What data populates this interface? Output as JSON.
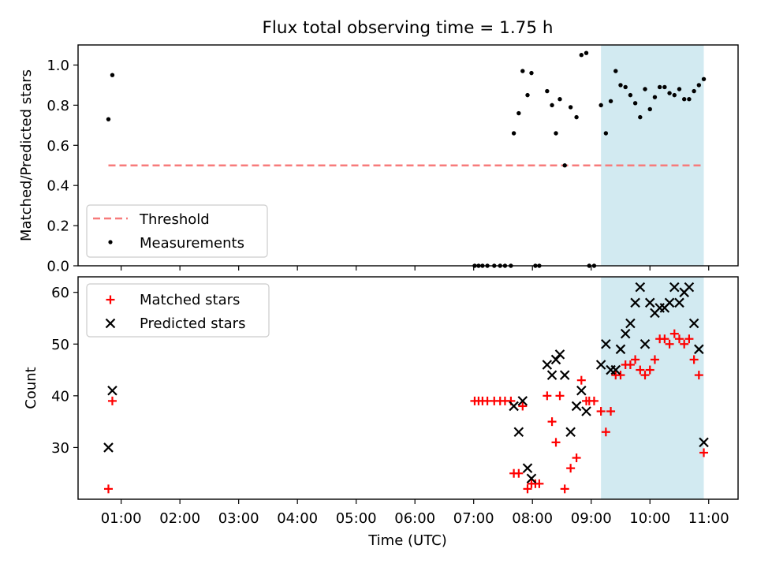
{
  "figure_title": "Flux total observing time = 1.75 h",
  "colors": {
    "threshold": "#f77b7b",
    "matched": "#ff0000",
    "predicted": "#000000",
    "measurement": "#000000",
    "highlight": "#add8e6"
  },
  "chart_data": [
    {
      "type": "scatter",
      "panel": "top",
      "ylabel": "Matched/Predicted stars",
      "ylim": [
        0,
        1.1
      ],
      "yticks": [
        0.0,
        0.2,
        0.4,
        0.6,
        0.8,
        1.0
      ],
      "ytick_labels": [
        "0.0",
        "0.2",
        "0.4",
        "0.6",
        "0.8",
        "1.0"
      ],
      "xlim": [
        "00:16",
        "11:30"
      ],
      "shaded_interval": [
        "09:10",
        "10:55"
      ],
      "legend_location": "lower-left",
      "legend": [
        {
          "label": "Threshold",
          "marker": "dashed-line"
        },
        {
          "label": "Measurements",
          "marker": "dot"
        }
      ],
      "threshold": {
        "name": "Threshold",
        "y": 0.5,
        "x_range": [
          "00:47",
          "10:53"
        ],
        "style": "dashed"
      },
      "series": [
        {
          "name": "Measurements",
          "points": [
            [
              "00:47",
              0.73
            ],
            [
              "00:51",
              0.95
            ],
            [
              "07:01",
              0.0
            ],
            [
              "07:05",
              0.0
            ],
            [
              "07:09",
              0.0
            ],
            [
              "07:14",
              0.0
            ],
            [
              "07:21",
              0.0
            ],
            [
              "07:27",
              0.0
            ],
            [
              "07:32",
              0.0
            ],
            [
              "07:38",
              0.0
            ],
            [
              "07:41",
              0.66
            ],
            [
              "07:46",
              0.76
            ],
            [
              "07:50",
              0.97
            ],
            [
              "07:55",
              0.85
            ],
            [
              "07:59",
              0.96
            ],
            [
              "08:03",
              0.0
            ],
            [
              "08:07",
              0.0
            ],
            [
              "08:15",
              0.87
            ],
            [
              "08:20",
              0.8
            ],
            [
              "08:24",
              0.66
            ],
            [
              "08:28",
              0.83
            ],
            [
              "08:33",
              0.5
            ],
            [
              "08:39",
              0.79
            ],
            [
              "08:45",
              0.74
            ],
            [
              "08:50",
              1.05
            ],
            [
              "08:55",
              1.06
            ],
            [
              "08:58",
              0.0
            ],
            [
              "09:03",
              0.0
            ],
            [
              "09:10",
              0.8
            ],
            [
              "09:15",
              0.66
            ],
            [
              "09:20",
              0.82
            ],
            [
              "09:25",
              0.97
            ],
            [
              "09:30",
              0.9
            ],
            [
              "09:35",
              0.89
            ],
            [
              "09:40",
              0.85
            ],
            [
              "09:45",
              0.81
            ],
            [
              "09:50",
              0.74
            ],
            [
              "09:55",
              0.88
            ],
            [
              "10:00",
              0.78
            ],
            [
              "10:05",
              0.84
            ],
            [
              "10:10",
              0.89
            ],
            [
              "10:15",
              0.89
            ],
            [
              "10:20",
              0.86
            ],
            [
              "10:25",
              0.85
            ],
            [
              "10:30",
              0.88
            ],
            [
              "10:35",
              0.83
            ],
            [
              "10:40",
              0.83
            ],
            [
              "10:45",
              0.87
            ],
            [
              "10:50",
              0.9
            ],
            [
              "10:55",
              0.93
            ]
          ]
        }
      ]
    },
    {
      "type": "scatter",
      "panel": "bottom",
      "xlabel": "Time (UTC)",
      "ylabel": "Count",
      "ylim": [
        20,
        63
      ],
      "yticks": [
        30,
        40,
        50,
        60
      ],
      "ytick_labels": [
        "30",
        "40",
        "50",
        "60"
      ],
      "xlim": [
        "00:16",
        "11:30"
      ],
      "xtick_labels": [
        "01:00",
        "02:00",
        "03:00",
        "04:00",
        "05:00",
        "06:00",
        "07:00",
        "08:00",
        "09:00",
        "10:00",
        "11:00"
      ],
      "shaded_interval": [
        "09:10",
        "10:55"
      ],
      "legend_location": "upper-left",
      "legend": [
        {
          "label": "Matched stars",
          "marker": "plus"
        },
        {
          "label": "Predicted stars",
          "marker": "x"
        }
      ],
      "series": [
        {
          "name": "Matched stars",
          "marker": "plus",
          "points": [
            [
              "00:47",
              22
            ],
            [
              "00:51",
              39
            ],
            [
              "07:01",
              39
            ],
            [
              "07:05",
              39
            ],
            [
              "07:09",
              39
            ],
            [
              "07:14",
              39
            ],
            [
              "07:21",
              39
            ],
            [
              "07:27",
              39
            ],
            [
              "07:32",
              39
            ],
            [
              "07:38",
              39
            ],
            [
              "07:41",
              25
            ],
            [
              "07:46",
              25
            ],
            [
              "07:50",
              38
            ],
            [
              "07:55",
              22
            ],
            [
              "07:59",
              23
            ],
            [
              "08:03",
              23
            ],
            [
              "08:07",
              23
            ],
            [
              "08:15",
              40
            ],
            [
              "08:20",
              35
            ],
            [
              "08:24",
              31
            ],
            [
              "08:28",
              40
            ],
            [
              "08:33",
              22
            ],
            [
              "08:39",
              26
            ],
            [
              "08:45",
              28
            ],
            [
              "08:50",
              43
            ],
            [
              "08:55",
              39
            ],
            [
              "08:58",
              39
            ],
            [
              "09:03",
              39
            ],
            [
              "09:10",
              37
            ],
            [
              "09:15",
              33
            ],
            [
              "09:20",
              37
            ],
            [
              "09:25",
              44
            ],
            [
              "09:30",
              44
            ],
            [
              "09:35",
              46
            ],
            [
              "09:40",
              46
            ],
            [
              "09:45",
              47
            ],
            [
              "09:50",
              45
            ],
            [
              "09:55",
              44
            ],
            [
              "10:00",
              45
            ],
            [
              "10:05",
              47
            ],
            [
              "10:10",
              51
            ],
            [
              "10:15",
              51
            ],
            [
              "10:20",
              50
            ],
            [
              "10:25",
              52
            ],
            [
              "10:30",
              51
            ],
            [
              "10:35",
              50
            ],
            [
              "10:40",
              51
            ],
            [
              "10:45",
              47
            ],
            [
              "10:50",
              44
            ],
            [
              "10:55",
              29
            ]
          ]
        },
        {
          "name": "Predicted stars",
          "marker": "x",
          "points": [
            [
              "00:47",
              30
            ],
            [
              "00:51",
              41
            ],
            [
              "07:41",
              38
            ],
            [
              "07:46",
              33
            ],
            [
              "07:50",
              39
            ],
            [
              "07:55",
              26
            ],
            [
              "07:59",
              24
            ],
            [
              "08:15",
              46
            ],
            [
              "08:20",
              44
            ],
            [
              "08:24",
              47
            ],
            [
              "08:28",
              48
            ],
            [
              "08:33",
              44
            ],
            [
              "08:39",
              33
            ],
            [
              "08:45",
              38
            ],
            [
              "08:50",
              41
            ],
            [
              "08:55",
              37
            ],
            [
              "09:10",
              46
            ],
            [
              "09:15",
              50
            ],
            [
              "09:20",
              45
            ],
            [
              "09:25",
              45
            ],
            [
              "09:30",
              49
            ],
            [
              "09:35",
              52
            ],
            [
              "09:40",
              54
            ],
            [
              "09:45",
              58
            ],
            [
              "09:50",
              61
            ],
            [
              "09:55",
              50
            ],
            [
              "10:00",
              58
            ],
            [
              "10:05",
              56
            ],
            [
              "10:10",
              57
            ],
            [
              "10:15",
              57
            ],
            [
              "10:20",
              58
            ],
            [
              "10:25",
              61
            ],
            [
              "10:30",
              58
            ],
            [
              "10:35",
              60
            ],
            [
              "10:40",
              61
            ],
            [
              "10:45",
              54
            ],
            [
              "10:50",
              49
            ],
            [
              "10:55",
              31
            ]
          ]
        }
      ]
    }
  ]
}
